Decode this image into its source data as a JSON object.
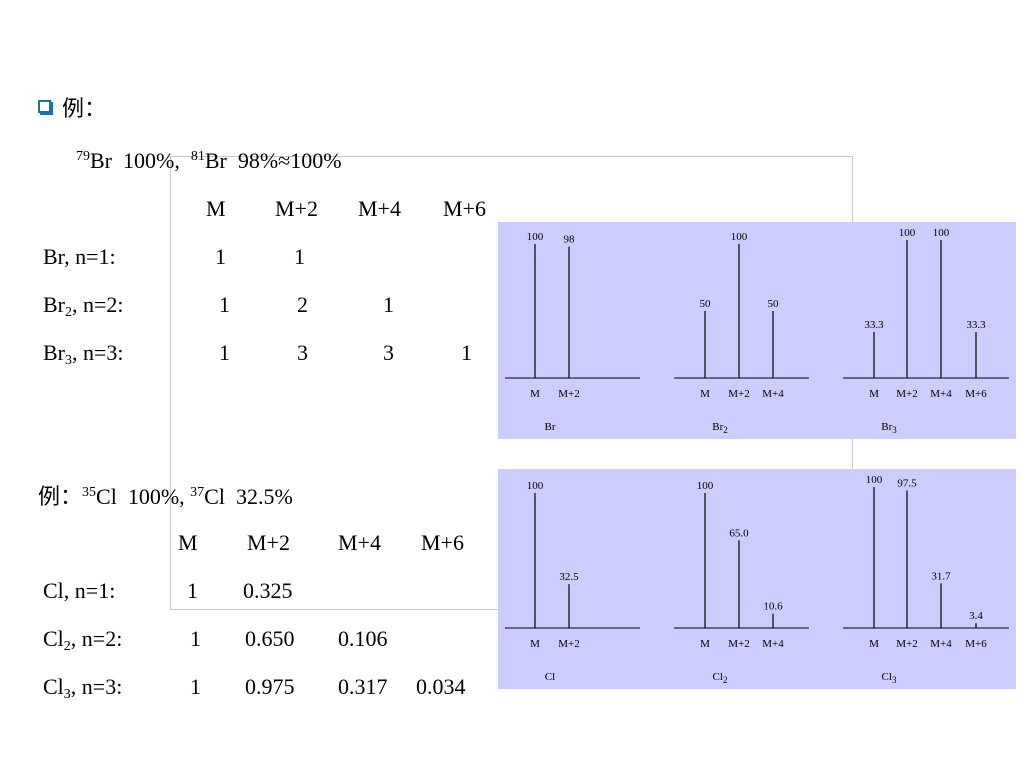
{
  "slide": {
    "example_label": "例：",
    "example_label2": "例：",
    "br_isotopes": {
      "iso1_mass": "79",
      "iso1_sym": "Br",
      "iso1_abund": "100%,",
      "iso2_mass": "81",
      "iso2_sym": "Br",
      "iso2_abund": "98%≈100%"
    },
    "cl_isotopes": {
      "iso1_mass": "35",
      "iso1_sym": "Cl",
      "iso1_abund": "100%,",
      "iso2_mass": "37",
      "iso2_sym": "Cl",
      "iso2_abund": "32.5%"
    },
    "columns": [
      "M",
      "M+2",
      "M+4",
      "M+6"
    ],
    "br_rows": [
      {
        "sym": "Br",
        "sub": "",
        "n": ", n=1:",
        "values": [
          "1",
          "1"
        ]
      },
      {
        "sym": "Br",
        "sub": "2",
        "n": ", n=2:",
        "values": [
          "1",
          "2",
          "1"
        ]
      },
      {
        "sym": "Br",
        "sub": "3",
        "n": ", n=3:",
        "values": [
          "1",
          "3",
          "3",
          "1"
        ]
      }
    ],
    "cl_rows": [
      {
        "sym": "Cl",
        "sub": "",
        "n": ",  n=1:",
        "values": [
          "1",
          "0.325"
        ]
      },
      {
        "sym": "Cl",
        "sub": "2",
        "n": ", n=2:",
        "values": [
          "1",
          "0.650",
          "0.106"
        ]
      },
      {
        "sym": "Cl",
        "sub": "3",
        "n": ", n=3:",
        "values": [
          "1",
          "0.975",
          "0.317",
          "0.034"
        ]
      }
    ]
  },
  "chart_data": [
    {
      "type": "bar",
      "title": "Br",
      "categories": [
        "M",
        "M+2"
      ],
      "values": [
        100,
        98
      ],
      "labels": [
        "100",
        "98"
      ],
      "ylim": [
        0,
        100
      ]
    },
    {
      "type": "bar",
      "title": "Br2",
      "categories": [
        "M",
        "M+2",
        "M+4"
      ],
      "values": [
        50,
        100,
        50
      ],
      "labels": [
        "50",
        "100",
        "50"
      ],
      "ylim": [
        0,
        100
      ]
    },
    {
      "type": "bar",
      "title": "Br3",
      "categories": [
        "M",
        "M+2",
        "M+4",
        "M+6"
      ],
      "values": [
        33.3,
        100,
        100,
        33.3
      ],
      "labels": [
        "33.3",
        "100",
        "100",
        "33.3"
      ],
      "ylim": [
        0,
        100
      ]
    },
    {
      "type": "bar",
      "title": "Cl",
      "categories": [
        "M",
        "M+2"
      ],
      "values": [
        100,
        32.5
      ],
      "labels": [
        "100",
        "32.5"
      ],
      "ylim": [
        0,
        100
      ]
    },
    {
      "type": "bar",
      "title": "Cl2",
      "categories": [
        "M",
        "M+2",
        "M+4"
      ],
      "values": [
        100,
        65.0,
        10.6
      ],
      "labels": [
        "100",
        "65.0",
        "10.6"
      ],
      "ylim": [
        0,
        100
      ]
    },
    {
      "type": "bar",
      "title": "Cl3",
      "categories": [
        "M",
        "M+2",
        "M+4",
        "M+6"
      ],
      "values": [
        100,
        97.5,
        31.7,
        3.4
      ],
      "labels": [
        "100",
        "97.5",
        "31.7",
        "3.4"
      ],
      "ylim": [
        0,
        100
      ]
    }
  ]
}
